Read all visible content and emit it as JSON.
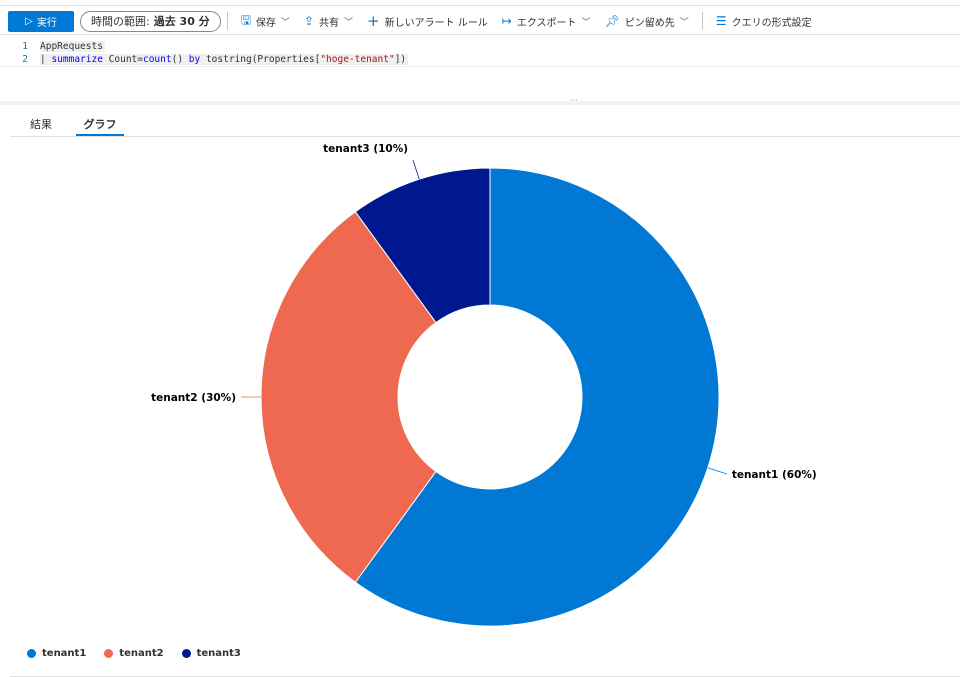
{
  "toolbar": {
    "run": "実行",
    "time_label": "時間の範囲:",
    "time_value": "過去 30 分",
    "save": "保存",
    "share": "共有",
    "new_alert": "新しいアラート ルール",
    "export": "エクスポート",
    "pin": "ピン留め先",
    "format": "クエリの形式設定"
  },
  "editor": {
    "lines": [
      {
        "num": "1",
        "text": "AppRequests"
      },
      {
        "num": "2",
        "pipe": "| ",
        "kw1": "summarize",
        "t1": " Count=",
        "kw2": "count",
        "t2": "() ",
        "kw3": "by",
        "t3": " tostring(Properties[",
        "str": "\"hoge-tenant\"",
        "t4": "])"
      }
    ]
  },
  "tabs": [
    {
      "label": "結果"
    },
    {
      "label": "グラフ",
      "active": true
    }
  ],
  "colors": {
    "tenant1": "#0078d4",
    "tenant2": "#ef6950",
    "tenant3": "#00188f",
    "accent": "#0078d4"
  },
  "chart_data": {
    "type": "pie",
    "donut": true,
    "categories": [
      "tenant1",
      "tenant2",
      "tenant3"
    ],
    "values": [
      60,
      30,
      10
    ],
    "labels": [
      "tenant1 (60%)",
      "tenant2 (30%)",
      "tenant3 (10%)"
    ],
    "legend_position": "bottom-left"
  }
}
